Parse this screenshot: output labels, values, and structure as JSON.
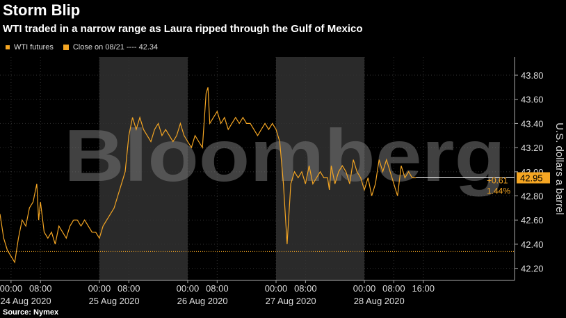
{
  "header": {
    "title": "Storm Blip",
    "subtitle": "WTI traded in a narrow range as Laura ripped through the Gulf of Mexico"
  },
  "legend": {
    "series_label": "WTI futures",
    "close_label": "Close on 08/21 ---- 42.34"
  },
  "source": "Source: Nymex",
  "watermark": "Bloomberg",
  "colors": {
    "line": "#f5a623",
    "shade": "#2a2a2a",
    "background": "#000000",
    "grid": "#444444"
  },
  "chart_data": {
    "type": "line",
    "title": "Storm Blip",
    "subtitle": "WTI traded in a narrow range as Laura ripped through the Gulf of Mexico",
    "ylabel": "U.S. dollars a barrel",
    "ylim": [
      42.1,
      43.95
    ],
    "yticks": [
      42.2,
      42.4,
      42.6,
      42.8,
      43.0,
      43.2,
      43.4,
      43.6,
      43.8
    ],
    "ytick_labels": [
      "42.20",
      "42.40",
      "42.60",
      "42.80",
      "43.00",
      "43.20",
      "43.40",
      "43.60",
      "43.80"
    ],
    "xlim_hours": [
      -3,
      136.8
    ],
    "xtick_labels": [
      "00:00",
      "08:00",
      "00:00",
      "08:00",
      "00:00",
      "08:00",
      "00:00",
      "08:00",
      "00:00",
      "08:00",
      "16:00"
    ],
    "xtick_hours": [
      0,
      8,
      24,
      32,
      48,
      56,
      72,
      80,
      96,
      104,
      112
    ],
    "day_labels": [
      "24 Aug 2020",
      "25 Aug 2020",
      "26 Aug 2020",
      "27 Aug 2020",
      "28 Aug 2020"
    ],
    "shaded_days": [
      1,
      3
    ],
    "reference_line": {
      "value": 42.34,
      "label": "Close on 08/21"
    },
    "last_value": {
      "value": "42.95",
      "change": "+0.61",
      "pct": "1.44%"
    },
    "series": [
      {
        "name": "WTI futures",
        "x": [
          -3,
          -2,
          -1,
          0,
          1,
          2,
          3,
          4,
          5,
          6,
          7,
          7.5,
          8,
          9,
          10,
          11,
          12,
          13,
          14,
          15,
          16,
          17,
          18,
          19,
          20,
          21,
          22,
          23,
          24,
          25,
          26,
          27,
          28,
          29,
          30,
          31,
          32,
          33,
          34,
          35,
          36,
          37,
          38,
          39,
          40,
          41,
          42,
          43,
          44,
          45,
          46,
          47,
          48,
          49,
          50,
          51,
          52,
          53,
          53.5,
          54,
          55,
          56,
          57,
          58,
          59,
          60,
          61,
          62,
          63,
          64,
          65,
          66,
          67,
          68,
          69,
          70,
          71,
          72,
          73,
          74,
          75,
          76,
          77,
          78,
          79,
          80,
          81,
          82,
          83,
          84,
          85,
          86,
          86.5,
          87,
          88,
          89,
          90,
          91,
          92,
          93,
          94,
          95,
          96,
          97,
          98,
          99,
          100,
          101,
          102,
          103,
          104,
          105,
          106,
          107,
          108,
          109,
          110
        ],
        "values": [
          42.65,
          42.45,
          42.35,
          42.3,
          42.25,
          42.45,
          42.6,
          42.55,
          42.7,
          42.75,
          42.9,
          42.6,
          42.75,
          42.5,
          42.45,
          42.5,
          42.4,
          42.55,
          42.5,
          42.45,
          42.55,
          42.6,
          42.6,
          42.55,
          42.6,
          42.55,
          42.5,
          42.5,
          42.45,
          42.55,
          42.6,
          42.65,
          42.7,
          42.8,
          42.9,
          43.0,
          43.3,
          43.45,
          43.35,
          43.45,
          43.35,
          43.3,
          43.25,
          43.35,
          43.4,
          43.3,
          43.35,
          43.3,
          43.25,
          43.3,
          43.4,
          43.3,
          43.25,
          43.2,
          43.3,
          43.25,
          43.2,
          43.65,
          43.7,
          43.4,
          43.45,
          43.5,
          43.4,
          43.45,
          43.35,
          43.4,
          43.45,
          43.4,
          43.45,
          43.4,
          43.4,
          43.35,
          43.3,
          43.35,
          43.4,
          43.35,
          43.4,
          43.35,
          43.25,
          42.9,
          42.4,
          42.9,
          43.0,
          42.95,
          43.0,
          42.9,
          43.05,
          42.9,
          42.95,
          43.0,
          42.95,
          42.95,
          42.85,
          43.05,
          42.9,
          43.0,
          43.05,
          43.0,
          42.9,
          43.1,
          43.0,
          42.95,
          42.85,
          42.95,
          42.8,
          42.9,
          43.1,
          43.0,
          43.1,
          43.0,
          42.9,
          42.8,
          43.05,
          42.95,
          43.0,
          42.95,
          42.95
        ]
      }
    ]
  }
}
